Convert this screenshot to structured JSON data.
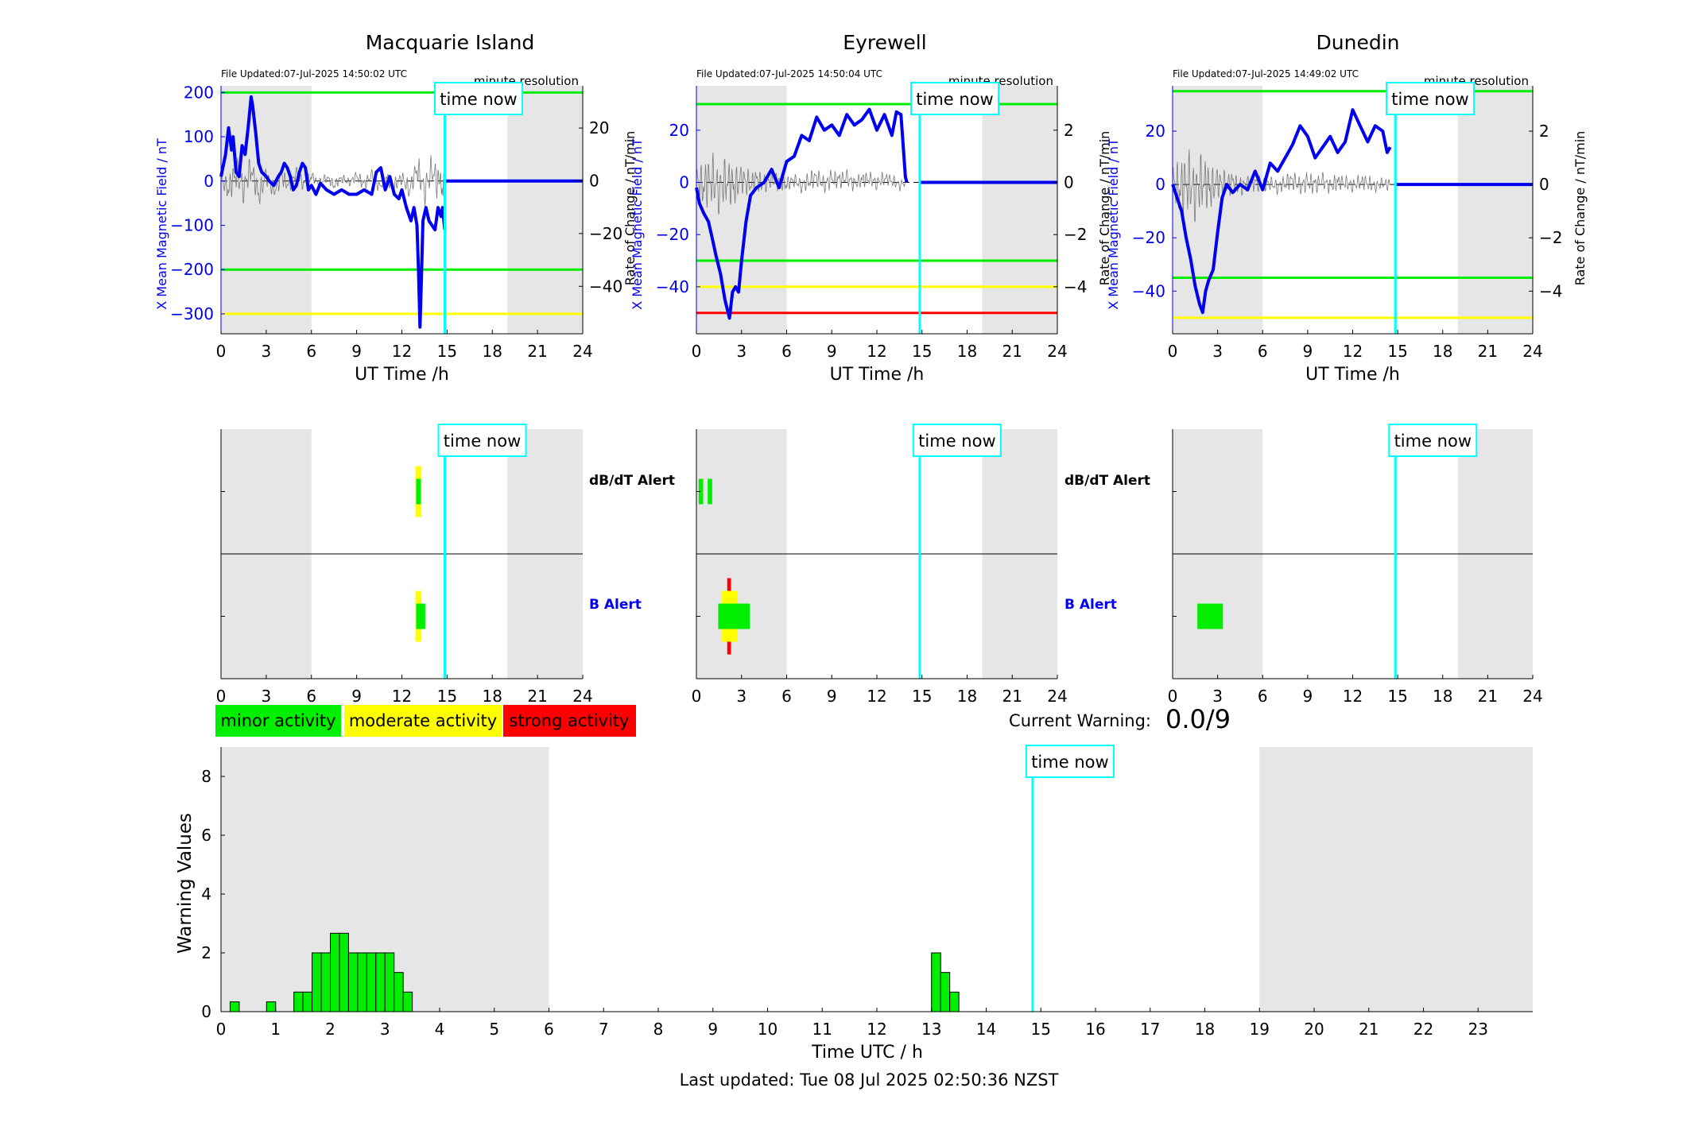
{
  "colors": {
    "shade": "#e6e6e6",
    "field": "#0000ee",
    "rate": "#7a7a7a",
    "minor": "#00ee00",
    "moderate": "#ffff00",
    "strong": "#ff0000",
    "now": "#00ffff",
    "rightAxis": "#000000"
  },
  "chart_data": [
    {
      "id": "macquarie",
      "type": "line",
      "title": "Macquarie Island",
      "file_updated": "File Updated:07-Jul-2025 14:50:02 UTC",
      "resolution": "minute resolution",
      "time_now_label": "time now",
      "time_now": 14.85,
      "xlabel": "UT Time /h",
      "ylabel": "X Mean Magnetic Field / nT",
      "y2label": "Rate of Change / nT/min",
      "xlim": [
        0,
        24
      ],
      "ylim": [
        -345,
        215
      ],
      "y2lim": [
        -58,
        36
      ],
      "xticks": [
        0,
        3,
        6,
        9,
        12,
        15,
        18,
        21,
        24
      ],
      "yticks": [
        -300,
        -200,
        -100,
        0,
        100,
        200
      ],
      "y2ticks": [
        -40,
        -20,
        0,
        20
      ],
      "night_shading": [
        [
          0,
          6
        ],
        [
          19,
          24
        ]
      ],
      "thresholds": [
        {
          "value": 200,
          "color": "green"
        },
        {
          "value": -200,
          "color": "green"
        },
        {
          "value": -300,
          "color": "yellow"
        }
      ],
      "field_series": {
        "name": "X Mean Magnetic Field",
        "x": [
          0,
          0.3,
          0.5,
          0.7,
          0.8,
          1.0,
          1.2,
          1.4,
          1.6,
          1.8,
          2.0,
          2.1,
          2.3,
          2.5,
          2.7,
          3.0,
          3.2,
          3.5,
          3.8,
          4.0,
          4.2,
          4.4,
          4.6,
          4.8,
          5.0,
          5.2,
          5.4,
          5.6,
          5.8,
          6.0,
          6.3,
          6.6,
          7.0,
          7.5,
          8.0,
          8.5,
          9.0,
          9.5,
          10.0,
          10.3,
          10.6,
          10.9,
          11.2,
          11.5,
          11.8,
          12.0,
          12.3,
          12.6,
          12.8,
          13.0,
          13.1,
          13.2,
          13.3,
          13.4,
          13.6,
          13.8,
          14.0,
          14.2,
          14.4,
          14.6,
          14.7,
          14.85
        ],
        "y": [
          10,
          60,
          120,
          70,
          100,
          20,
          10,
          80,
          60,
          120,
          190,
          170,
          110,
          40,
          20,
          10,
          0,
          -10,
          10,
          20,
          40,
          30,
          10,
          -20,
          -10,
          20,
          40,
          30,
          -20,
          -10,
          -30,
          -5,
          -20,
          -30,
          -20,
          -30,
          -30,
          -20,
          -30,
          20,
          30,
          -20,
          10,
          -30,
          -40,
          -20,
          -60,
          -90,
          -60,
          -100,
          -200,
          -330,
          -220,
          -90,
          -60,
          -90,
          -100,
          -110,
          -60,
          -80,
          -60,
          -110
        ]
      },
      "field_after_now": 0,
      "rate_series": {
        "name": "Rate of Change",
        "x": [
          0,
          0.5,
          1,
          1.5,
          2,
          2.5,
          3,
          3.5,
          4,
          4.5,
          5,
          5.5,
          6,
          6.5,
          7,
          7.5,
          8,
          8.5,
          9,
          9.5,
          10,
          10.5,
          11,
          11.5,
          12,
          12.5,
          13,
          13.5,
          14,
          14.5,
          14.85
        ],
        "y": [
          2,
          -10,
          10,
          -8,
          14,
          -16,
          6,
          -12,
          5,
          -6,
          8,
          -4,
          5,
          -3,
          4,
          -5,
          3,
          -2,
          5,
          -4,
          6,
          -7,
          3,
          -5,
          4,
          -10,
          14,
          -10,
          12,
          -6,
          -3
        ]
      },
      "rate_noise": [
        8,
        12,
        14,
        12,
        10,
        10,
        8,
        8,
        7,
        6,
        6,
        5,
        4,
        4,
        4,
        4,
        4,
        4,
        5,
        5,
        5,
        5,
        6,
        6,
        7,
        8,
        12,
        14,
        14,
        12,
        10
      ]
    },
    {
      "id": "eyrewell",
      "type": "line",
      "title": "Eyrewell",
      "file_updated": "File Updated:07-Jul-2025 14:50:04 UTC",
      "resolution": "minute resolution",
      "time_now_label": "time now",
      "time_now": 14.85,
      "xlabel": "UT Time /h",
      "ylabel": "X Mean Magnetic Field / nT",
      "y2label": "Rate of Change / nT/min",
      "xlim": [
        0,
        24
      ],
      "ylim": [
        -58,
        37
      ],
      "y2lim": [
        -5.8,
        3.7
      ],
      "xticks": [
        0,
        3,
        6,
        9,
        12,
        15,
        18,
        21,
        24
      ],
      "yticks": [
        -40,
        -20,
        0,
        20
      ],
      "y2ticks": [
        -4,
        -2,
        0,
        2
      ],
      "night_shading": [
        [
          0,
          6
        ],
        [
          19,
          24
        ]
      ],
      "thresholds": [
        {
          "value": 30,
          "color": "green"
        },
        {
          "value": -30,
          "color": "green"
        },
        {
          "value": -40,
          "color": "yellow"
        },
        {
          "value": -50,
          "color": "red"
        }
      ],
      "field_series": {
        "name": "X Mean Magnetic Field",
        "x": [
          0,
          0.2,
          0.5,
          0.8,
          1.0,
          1.3,
          1.6,
          1.9,
          2.2,
          2.4,
          2.6,
          2.8,
          3.0,
          3.3,
          3.6,
          4.0,
          4.5,
          5.0,
          5.5,
          6.0,
          6.5,
          7.0,
          7.5,
          8.0,
          8.5,
          9.0,
          9.5,
          10.0,
          10.5,
          11.0,
          11.5,
          12.0,
          12.5,
          13.0,
          13.3,
          13.6,
          13.9,
          14.0
        ],
        "y": [
          -2,
          -8,
          -12,
          -15,
          -20,
          -28,
          -35,
          -45,
          -52,
          -42,
          -40,
          -42,
          -30,
          -15,
          -5,
          -2,
          0,
          5,
          -2,
          8,
          10,
          18,
          16,
          25,
          20,
          22,
          18,
          26,
          22,
          24,
          28,
          20,
          26,
          18,
          27,
          26,
          2,
          0
        ]
      },
      "field_after_now": 0,
      "rate_series": {
        "name": "Rate of Change",
        "x": [
          0,
          0.5,
          1,
          1.5,
          2,
          2.5,
          3,
          3.5,
          4,
          4.5,
          5,
          5.5,
          6,
          6.5,
          7,
          7.5,
          8,
          8.5,
          9,
          9.5,
          10,
          10.5,
          11,
          11.5,
          12,
          12.5,
          13,
          13.5,
          14
        ],
        "y": [
          0.3,
          -0.5,
          0.6,
          -0.8,
          0.4,
          -0.6,
          0.5,
          -0.3,
          0.2,
          -0.2,
          0.3,
          0.1,
          -0.2,
          0.3,
          -0.4,
          0.2,
          0.6,
          -0.3,
          0.4,
          0.2,
          0.5,
          -0.2,
          0.3,
          0.4,
          -0.1,
          0.5,
          0.2,
          -0.3,
          0.1
        ]
      },
      "rate_noise": [
        1.6,
        2.0,
        2.2,
        2.0,
        1.8,
        1.5,
        1.3,
        1.0,
        0.9,
        0.8,
        0.8,
        0.7,
        0.6,
        0.6,
        0.7,
        0.8,
        0.8,
        0.8,
        0.7,
        0.7,
        0.7,
        0.6,
        0.6,
        0.6,
        0.6,
        0.5,
        0.5,
        0.5,
        0.4
      ]
    },
    {
      "id": "dunedin",
      "type": "line",
      "title": "Dunedin",
      "file_updated": "File Updated:07-Jul-2025 14:49:02 UTC",
      "resolution": "minute resolution",
      "time_now_label": "time now",
      "time_now": 14.85,
      "xlabel": "UT Time /h",
      "ylabel": "X Mean Magnetic Field / nT",
      "y2label": "Rate of Change / nT/min",
      "xlim": [
        0,
        24
      ],
      "ylim": [
        -56,
        37
      ],
      "y2lim": [
        -5.6,
        3.7
      ],
      "xticks": [
        0,
        3,
        6,
        9,
        12,
        15,
        18,
        21,
        24
      ],
      "yticks": [
        -40,
        -20,
        0,
        20
      ],
      "y2ticks": [
        -4,
        -2,
        0,
        2
      ],
      "night_shading": [
        [
          0,
          6
        ],
        [
          19,
          24
        ]
      ],
      "thresholds": [
        {
          "value": 35,
          "color": "green"
        },
        {
          "value": -35,
          "color": "green"
        },
        {
          "value": -50,
          "color": "yellow"
        }
      ],
      "field_series": {
        "name": "X Mean Magnetic Field",
        "x": [
          0,
          0.3,
          0.6,
          0.9,
          1.2,
          1.5,
          1.8,
          2.0,
          2.2,
          2.4,
          2.7,
          3.0,
          3.3,
          3.6,
          4.0,
          4.5,
          5.0,
          5.5,
          6.0,
          6.5,
          7.0,
          7.5,
          8.0,
          8.5,
          9.0,
          9.5,
          10.0,
          10.5,
          11.0,
          11.5,
          12.0,
          12.5,
          13.0,
          13.5,
          14.0,
          14.3,
          14.5
        ],
        "y": [
          0,
          -5,
          -10,
          -20,
          -28,
          -38,
          -45,
          -48,
          -40,
          -36,
          -32,
          -18,
          -5,
          0,
          -3,
          0,
          -2,
          5,
          -2,
          8,
          5,
          10,
          15,
          22,
          18,
          10,
          14,
          18,
          12,
          16,
          28,
          22,
          16,
          22,
          20,
          12,
          14
        ]
      },
      "field_after_now": 0,
      "rate_series": {
        "name": "Rate of Change",
        "x": [
          0,
          0.5,
          1,
          1.5,
          2,
          2.5,
          3,
          3.5,
          4,
          4.5,
          5,
          5.5,
          6,
          6.5,
          7,
          7.5,
          8,
          8.5,
          9,
          9.5,
          10,
          10.5,
          11,
          11.5,
          12,
          12.5,
          13,
          13.5,
          14,
          14.5
        ],
        "y": [
          0.4,
          -0.6,
          0.5,
          -0.8,
          0.6,
          -0.5,
          0.3,
          -0.2,
          0.2,
          -0.3,
          0.1,
          0.2,
          -0.1,
          0.2,
          -0.3,
          0.2,
          0.5,
          -0.2,
          0.3,
          -0.1,
          0.4,
          -0.2,
          0.3,
          0.2,
          -0.1,
          0.3,
          0.2,
          -0.2,
          0.1,
          0.0
        ]
      },
      "rate_noise": [
        2.0,
        2.4,
        2.6,
        2.4,
        2.0,
        1.6,
        1.3,
        1.0,
        0.8,
        0.8,
        0.7,
        0.7,
        0.6,
        0.6,
        0.6,
        0.7,
        0.8,
        0.8,
        0.8,
        0.7,
        0.7,
        0.7,
        0.6,
        0.6,
        0.6,
        0.6,
        0.6,
        0.5,
        0.5,
        0.4
      ]
    },
    {
      "id": "alert-macquarie",
      "type": "heatmap",
      "time_now_label": "time now",
      "time_now": 14.85,
      "xlim": [
        0,
        24
      ],
      "xticks": [
        0,
        3,
        6,
        9,
        12,
        15,
        18,
        21,
        24
      ],
      "night_shading": [
        [
          0,
          6
        ],
        [
          19,
          24
        ]
      ],
      "rows": [
        "dB/dT Alert",
        "B Alert"
      ],
      "dbdt_alerts": [
        {
          "start": 12.9,
          "end": 13.3,
          "level": "moderate"
        },
        {
          "start": 12.95,
          "end": 13.25,
          "level": "minor"
        }
      ],
      "b_alerts": [
        {
          "start": 12.9,
          "end": 13.3,
          "level": "moderate"
        },
        {
          "start": 12.95,
          "end": 13.55,
          "level": "minor"
        }
      ]
    },
    {
      "id": "alert-eyrewell",
      "type": "heatmap",
      "time_now_label": "time now",
      "time_now": 14.85,
      "xlim": [
        0,
        24
      ],
      "xticks": [
        0,
        3,
        6,
        9,
        12,
        15,
        18,
        21,
        24
      ],
      "night_shading": [
        [
          0,
          6
        ],
        [
          19,
          24
        ]
      ],
      "rows": [
        "dB/dT Alert",
        "B Alert"
      ],
      "dbdt_alerts": [
        {
          "start": 0.15,
          "end": 0.45,
          "level": "minor"
        },
        {
          "start": 0.75,
          "end": 1.05,
          "level": "minor"
        }
      ],
      "b_alerts": [
        {
          "start": 2.05,
          "end": 2.3,
          "level": "strong"
        },
        {
          "start": 1.65,
          "end": 2.75,
          "level": "moderate"
        },
        {
          "start": 1.45,
          "end": 3.55,
          "level": "minor"
        }
      ]
    },
    {
      "id": "alert-dunedin",
      "type": "heatmap",
      "time_now_label": "time now",
      "time_now": 14.85,
      "xlim": [
        0,
        24
      ],
      "xticks": [
        0,
        3,
        6,
        9,
        12,
        15,
        18,
        21,
        24
      ],
      "night_shading": [
        [
          0,
          6
        ],
        [
          19,
          24
        ]
      ],
      "rows": [
        "dB/dT Alert",
        "B Alert"
      ],
      "dbdt_alerts": [],
      "b_alerts": [
        {
          "start": 1.65,
          "end": 3.35,
          "level": "minor"
        }
      ]
    },
    {
      "id": "warning",
      "type": "bar",
      "xlabel": "Time UTC / h",
      "ylabel": "Warning Values",
      "time_now_label": "time now",
      "time_now": 14.85,
      "xlim": [
        0,
        24
      ],
      "ylim": [
        0,
        9
      ],
      "xticks": [
        0,
        1,
        2,
        3,
        4,
        5,
        6,
        7,
        8,
        9,
        10,
        11,
        12,
        13,
        14,
        15,
        16,
        17,
        18,
        19,
        20,
        21,
        22,
        23
      ],
      "yticks": [
        0,
        2,
        4,
        6,
        8
      ],
      "night_shading": [
        [
          0,
          6
        ],
        [
          19,
          24
        ]
      ],
      "bar_width_h": 0.1667,
      "bars": [
        {
          "start": 0.1667,
          "value": 0.3333
        },
        {
          "start": 0.8333,
          "value": 0.3333
        },
        {
          "start": 1.3333,
          "value": 0.6667
        },
        {
          "start": 1.5,
          "value": 0.6667
        },
        {
          "start": 1.6667,
          "value": 2
        },
        {
          "start": 1.8333,
          "value": 2
        },
        {
          "start": 2.0,
          "value": 2.6667
        },
        {
          "start": 2.1667,
          "value": 2.6667
        },
        {
          "start": 2.3333,
          "value": 2
        },
        {
          "start": 2.5,
          "value": 2
        },
        {
          "start": 2.6667,
          "value": 2
        },
        {
          "start": 2.8333,
          "value": 2
        },
        {
          "start": 3.0,
          "value": 2
        },
        {
          "start": 3.1667,
          "value": 1.3333
        },
        {
          "start": 3.3333,
          "value": 0.6667
        },
        {
          "start": 13.0,
          "value": 2
        },
        {
          "start": 13.1667,
          "value": 1.3333
        },
        {
          "start": 13.3333,
          "value": 0.6667
        }
      ]
    }
  ],
  "legend": [
    {
      "label": "minor activity",
      "color": "#00ee00"
    },
    {
      "label": "moderate activity",
      "color": "#ffff00"
    },
    {
      "label": "strong activity",
      "color": "#ff0000"
    }
  ],
  "current_warning": {
    "label": "Current Warning:",
    "value": "0.0/9"
  },
  "last_updated": "Last updated: Tue 08 Jul 2025 02:50:36 NZST"
}
